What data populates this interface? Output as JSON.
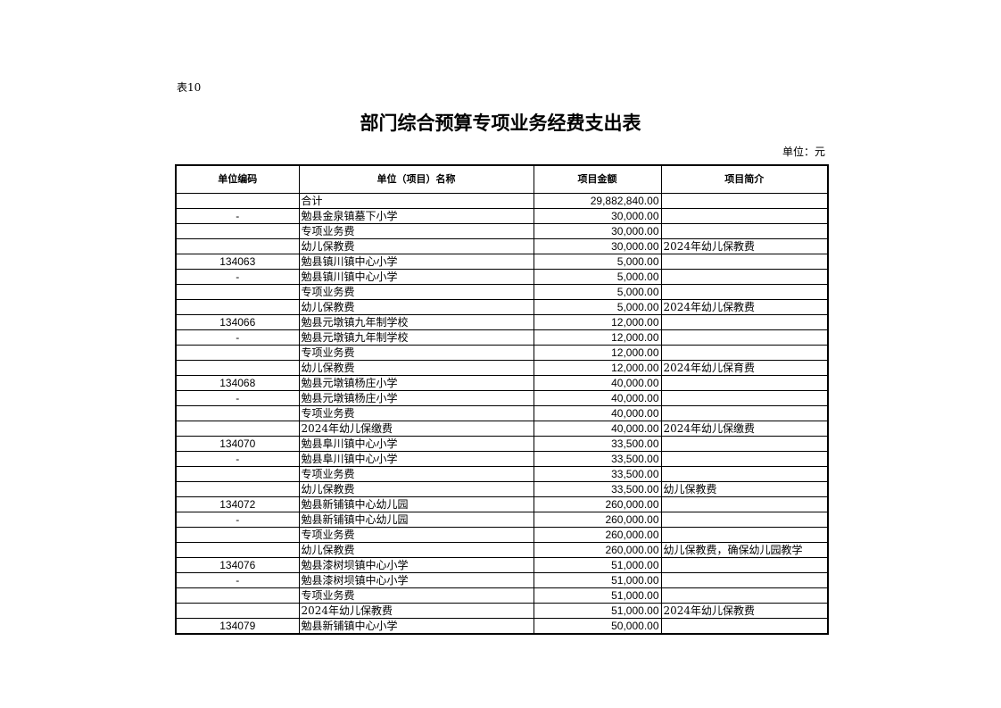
{
  "table_label": "表10",
  "title": "部门综合预算专项业务经费支出表",
  "unit": "单位：元",
  "columns": [
    "单位编码",
    "单位（项目）名称",
    "项目金额",
    "项目简介"
  ],
  "rows": [
    [
      "",
      "合计",
      "29,882,840.00",
      ""
    ],
    [
      "-",
      "勉县金泉镇墓下小学",
      "30,000.00",
      ""
    ],
    [
      "",
      "专项业务费",
      "30,000.00",
      ""
    ],
    [
      "",
      "幼儿保教费",
      "30,000.00",
      "2024年幼儿保教费"
    ],
    [
      "134063",
      "勉县镇川镇中心小学",
      "5,000.00",
      ""
    ],
    [
      "-",
      "勉县镇川镇中心小学",
      "5,000.00",
      ""
    ],
    [
      "",
      "专项业务费",
      "5,000.00",
      ""
    ],
    [
      "",
      "幼儿保教费",
      "5,000.00",
      "2024年幼儿保教费"
    ],
    [
      "134066",
      "勉县元墩镇九年制学校",
      "12,000.00",
      ""
    ],
    [
      "-",
      "勉县元墩镇九年制学校",
      "12,000.00",
      ""
    ],
    [
      "",
      "专项业务费",
      "12,000.00",
      ""
    ],
    [
      "",
      "幼儿保教费",
      "12,000.00",
      "2024年幼儿保育费"
    ],
    [
      "134068",
      "勉县元墩镇杨庄小学",
      "40,000.00",
      ""
    ],
    [
      "-",
      "勉县元墩镇杨庄小学",
      "40,000.00",
      ""
    ],
    [
      "",
      "专项业务费",
      "40,000.00",
      ""
    ],
    [
      "",
      "2024年幼儿保缴费",
      "40,000.00",
      "2024年幼儿保缴费"
    ],
    [
      "134070",
      "勉县阜川镇中心小学",
      "33,500.00",
      ""
    ],
    [
      "-",
      "勉县阜川镇中心小学",
      "33,500.00",
      ""
    ],
    [
      "",
      "专项业务费",
      "33,500.00",
      ""
    ],
    [
      "",
      "幼儿保教费",
      "33,500.00",
      "幼儿保教费"
    ],
    [
      "134072",
      "勉县新铺镇中心幼儿园",
      "260,000.00",
      ""
    ],
    [
      "-",
      "勉县新铺镇中心幼儿园",
      "260,000.00",
      ""
    ],
    [
      "",
      "专项业务费",
      "260,000.00",
      ""
    ],
    [
      "",
      "幼儿保教费",
      "260,000.00",
      "幼儿保教费，确保幼儿园教学"
    ],
    [
      "134076",
      "勉县漆树坝镇中心小学",
      "51,000.00",
      ""
    ],
    [
      "-",
      "勉县漆树坝镇中心小学",
      "51,000.00",
      ""
    ],
    [
      "",
      "专项业务费",
      "51,000.00",
      ""
    ],
    [
      "",
      "2024年幼儿保教费",
      "51,000.00",
      "2024年幼儿保教费"
    ],
    [
      "134079",
      "勉县新铺镇中心小学",
      "50,000.00",
      ""
    ]
  ]
}
